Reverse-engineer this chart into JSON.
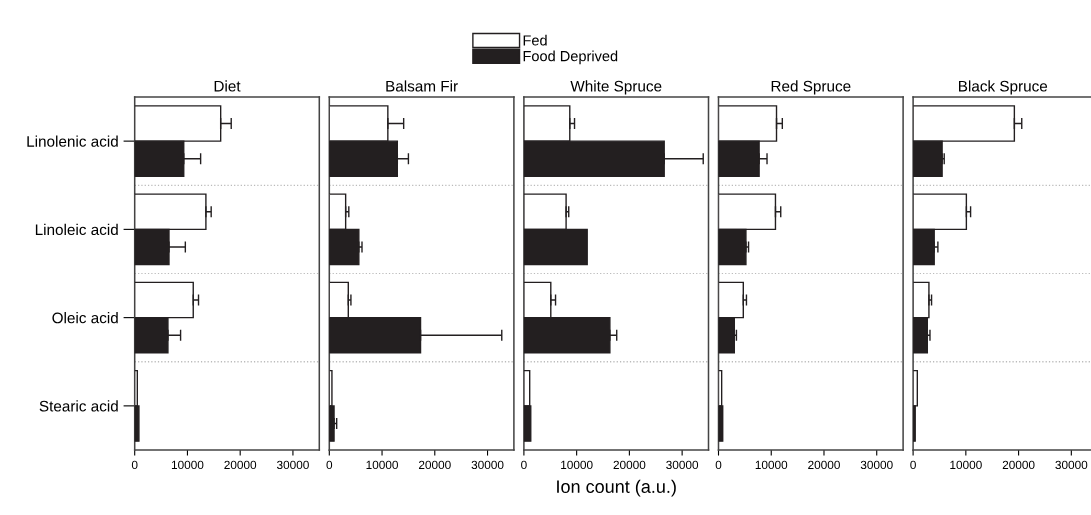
{
  "chart_data": [
    {
      "type": "bar",
      "orientation": "horizontal",
      "title": "Diet",
      "legend": "top",
      "categories": [
        "Linolenic acid",
        "Linoleic acid",
        "Oleic acid",
        "Stearic acid"
      ],
      "xlim": [
        0,
        35000
      ],
      "xticks": [
        0,
        10000,
        20000,
        30000
      ],
      "grid": "y",
      "series": [
        {
          "name": "Fed",
          "color": "#ffffff",
          "values": [
            16300,
            13500,
            11100,
            500
          ],
          "errors": [
            2000,
            1000,
            1000,
            null
          ]
        },
        {
          "name": "Food Deprived",
          "color": "#231f20",
          "values": [
            9300,
            6500,
            6300,
            800
          ],
          "errors": [
            3200,
            3100,
            2400,
            null
          ]
        }
      ]
    },
    {
      "type": "bar",
      "orientation": "horizontal",
      "title": "Balsam Fir",
      "categories": [
        null,
        null,
        null,
        null
      ],
      "xlim": [
        0,
        35000
      ],
      "xticks": [
        0,
        10000,
        20000,
        30000
      ],
      "grid": "y",
      "tick_labels": "x",
      "series": [
        {
          "color": "#ffffff",
          "values": [
            11100,
            3100,
            3600,
            500
          ],
          "errors": [
            3000,
            600,
            500,
            null
          ]
        },
        {
          "color": "#231f20",
          "values": [
            12900,
            5600,
            17300,
            900
          ],
          "errors": [
            2100,
            600,
            15400,
            500
          ]
        }
      ]
    },
    {
      "type": "bar",
      "orientation": "horizontal",
      "title": "White Spruce",
      "xlabel": "Ion count (a.u.)",
      "categories": [
        null,
        null,
        null,
        null
      ],
      "xlim": [
        0,
        35000
      ],
      "xticks": [
        0,
        10000,
        20000,
        30000
      ],
      "grid": "y",
      "tick_labels": "x",
      "series": [
        {
          "color": "#ffffff",
          "values": [
            8700,
            8000,
            5100,
            1100
          ],
          "errors": [
            900,
            500,
            900,
            null
          ]
        },
        {
          "color": "#231f20",
          "values": [
            26600,
            12000,
            16300,
            1300
          ],
          "errors": [
            7400,
            null,
            1300,
            null
          ]
        }
      ]
    },
    {
      "type": "bar",
      "orientation": "horizontal",
      "title": "Red Spruce",
      "categories": [
        null,
        null,
        null,
        null
      ],
      "xlim": [
        0,
        35000
      ],
      "xticks": [
        0,
        10000,
        20000,
        30000
      ],
      "grid": "y",
      "tick_labels": "x",
      "series": [
        {
          "color": "#ffffff",
          "values": [
            11000,
            10800,
            4700,
            600
          ],
          "errors": [
            1100,
            1000,
            600,
            null
          ]
        },
        {
          "color": "#231f20",
          "values": [
            7700,
            5200,
            3000,
            800
          ],
          "errors": [
            1500,
            500,
            400,
            null
          ]
        }
      ]
    },
    {
      "type": "bar",
      "orientation": "horizontal",
      "title": "Black Spruce",
      "categories": [
        null,
        null,
        null,
        null
      ],
      "xlim": [
        0,
        34000
      ],
      "xticks": [
        0,
        10000,
        20000,
        30000
      ],
      "grid": "y",
      "tick_labels": "x",
      "series": [
        {
          "color": "#ffffff",
          "values": [
            19200,
            10100,
            3000,
            800
          ],
          "errors": [
            1400,
            800,
            500,
            null
          ]
        },
        {
          "color": "#231f20",
          "values": [
            5500,
            4000,
            2700,
            400
          ],
          "errors": [
            400,
            700,
            500,
            null
          ]
        }
      ]
    }
  ]
}
